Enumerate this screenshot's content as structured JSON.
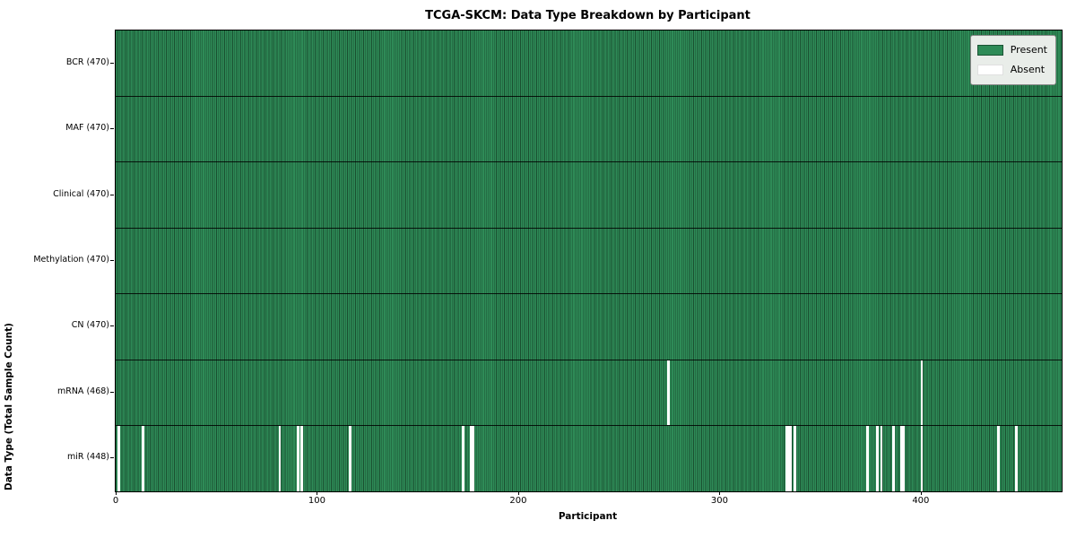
{
  "title": "TCGA-SKCM: Data Type Breakdown by Participant",
  "xlabel": "Participant",
  "ylabel": "Data Type (Total Sample Count)",
  "legend": {
    "present_label": "Present",
    "absent_label": "Absent"
  },
  "colors": {
    "present": "#2e8b57",
    "present_edge": "#1a4f30",
    "absent": "#ffffff",
    "row_separator": "#000000",
    "legend_bg": "#e9ede9",
    "legend_border": "#8a8a8a"
  },
  "chart_data": {
    "type": "heatmap",
    "title": "TCGA-SKCM: Data Type Breakdown by Participant",
    "xlabel": "Participant",
    "ylabel": "Data Type (Total Sample Count)",
    "legend_entries": [
      "Present",
      "Absent"
    ],
    "legend_position": "upper right",
    "x_range": [
      0,
      470
    ],
    "x_ticks": [
      0,
      100,
      200,
      300,
      400
    ],
    "n_participants": 470,
    "grid": false,
    "rows": [
      {
        "label": "BCR (470)",
        "data_type": "BCR",
        "present_count": 470,
        "absent_participants": []
      },
      {
        "label": "MAF (470)",
        "data_type": "MAF",
        "present_count": 470,
        "absent_participants": []
      },
      {
        "label": "Clinical (470)",
        "data_type": "Clinical",
        "present_count": 470,
        "absent_participants": []
      },
      {
        "label": "Methylation (470)",
        "data_type": "Methylation",
        "present_count": 470,
        "absent_participants": []
      },
      {
        "label": "CN (470)",
        "data_type": "CN",
        "present_count": 470,
        "absent_participants": []
      },
      {
        "label": "mRNA (468)",
        "data_type": "mRNA",
        "present_count": 468,
        "absent_participants": [
          274,
          400
        ]
      },
      {
        "label": "miR (448)",
        "data_type": "miR",
        "present_count": 448,
        "absent_participants": [
          1,
          13,
          81,
          90,
          92,
          116,
          172,
          176,
          177,
          333,
          334,
          335,
          337,
          373,
          378,
          380,
          386,
          390,
          391,
          400,
          438,
          447
        ]
      }
    ]
  }
}
